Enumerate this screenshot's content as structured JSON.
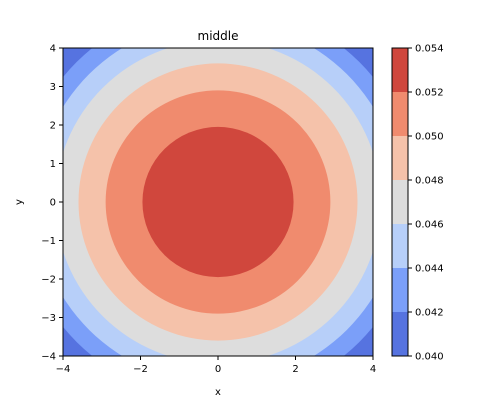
{
  "chart_data": {
    "type": "heatmap",
    "subtype": "filled-contour",
    "title": "middle",
    "xlabel": "x",
    "ylabel": "y",
    "xlim": [
      -4,
      4
    ],
    "ylim": [
      -4,
      4
    ],
    "x_ticks": [
      -4,
      -2,
      0,
      2,
      4
    ],
    "y_ticks": [
      -4,
      -3,
      -2,
      -1,
      0,
      1,
      2,
      3,
      4
    ],
    "x_tick_labels": [
      "−4",
      "−2",
      "0",
      "2",
      "4"
    ],
    "y_tick_labels": [
      "−4",
      "−3",
      "−2",
      "−1",
      "0",
      "1",
      "2",
      "3",
      "4"
    ],
    "colorbar": {
      "levels": [
        0.04,
        0.042,
        0.044,
        0.046,
        0.048,
        0.05,
        0.052,
        0.054
      ],
      "tick_labels": [
        "0.040",
        "0.042",
        "0.044",
        "0.046",
        "0.048",
        "0.050",
        "0.052",
        "0.054"
      ],
      "colors": [
        "#5673e0",
        "#7b9ff9",
        "#b7cff9",
        "#dddddd",
        "#f5c2aa",
        "#f08b6e",
        "#d0473d"
      ]
    },
    "bands": [
      {
        "from": 0.04,
        "to": 0.042,
        "outer_radius": null,
        "color": "#5673e0"
      },
      {
        "from": 0.042,
        "to": 0.044,
        "outer_radius": 5.15,
        "color": "#7b9ff9"
      },
      {
        "from": 0.044,
        "to": 0.046,
        "outer_radius": 4.7,
        "color": "#b7cff9"
      },
      {
        "from": 0.046,
        "to": 0.048,
        "outer_radius": 4.2,
        "color": "#dddddd"
      },
      {
        "from": 0.048,
        "to": 0.05,
        "outer_radius": 3.6,
        "color": "#f5c2aa"
      },
      {
        "from": 0.05,
        "to": 0.052,
        "outer_radius": 2.9,
        "color": "#f08b6e"
      },
      {
        "from": 0.052,
        "to": 0.054,
        "outer_radius": 1.95,
        "color": "#d0473d"
      }
    ]
  }
}
